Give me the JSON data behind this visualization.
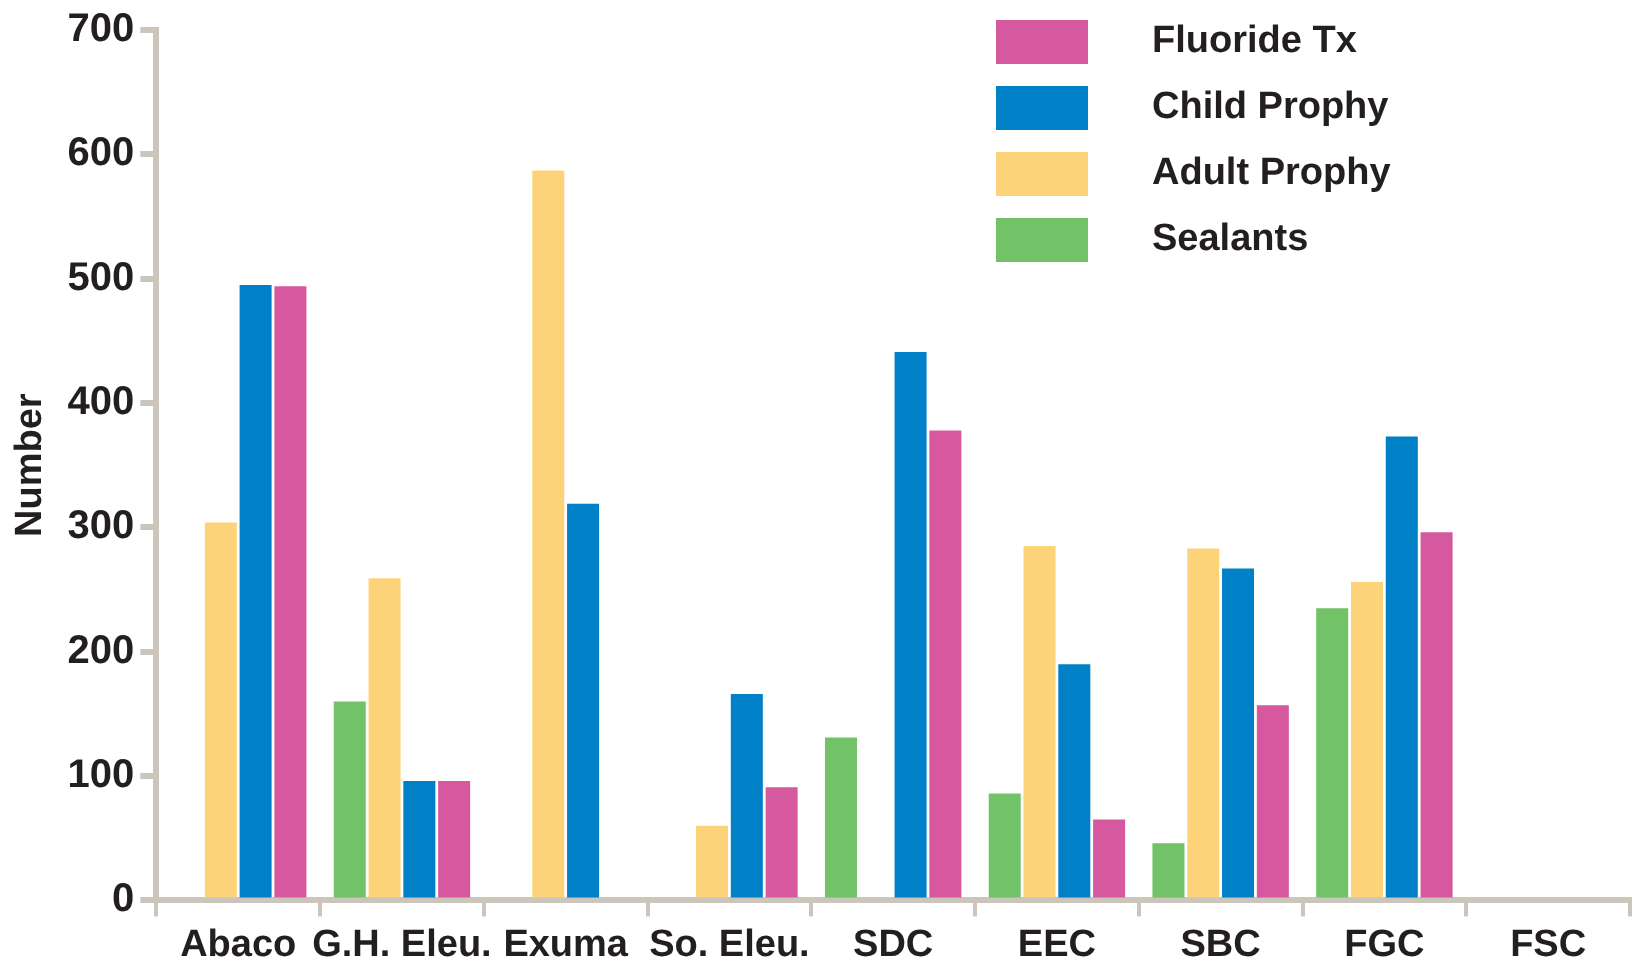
{
  "chart_data": {
    "type": "bar",
    "ylabel": "Number",
    "categories": [
      "Abaco",
      "G.H. Eleu.",
      "Exuma",
      "So. Eleu.",
      "SDC",
      "EEC",
      "SBC",
      "FGC",
      "FSC"
    ],
    "series": [
      {
        "name": "Sealants",
        "color": "#72c267",
        "values": [
          0,
          160,
          0,
          0,
          131,
          86,
          46,
          235,
          0
        ]
      },
      {
        "name": "Adult Prophy",
        "color": "#fdd379",
        "values": [
          304,
          259,
          587,
          60,
          0,
          285,
          283,
          256,
          0
        ]
      },
      {
        "name": "Child Prophy",
        "color": "#0080c6",
        "values": [
          495,
          96,
          319,
          166,
          441,
          190,
          267,
          373,
          0
        ]
      },
      {
        "name": "Fluoride Tx",
        "color": "#d6589f",
        "values": [
          494,
          96,
          0,
          91,
          378,
          65,
          157,
          296,
          0
        ]
      }
    ],
    "ylim": [
      0,
      700
    ],
    "yticks": [
      0,
      100,
      200,
      300,
      400,
      500,
      600,
      700
    ],
    "grid": false,
    "legend": "top right"
  }
}
